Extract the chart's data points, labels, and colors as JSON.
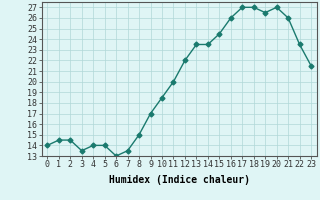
{
  "x": [
    0,
    1,
    2,
    3,
    4,
    5,
    6,
    7,
    8,
    9,
    10,
    11,
    12,
    13,
    14,
    15,
    16,
    17,
    18,
    19,
    20,
    21,
    22,
    23
  ],
  "y": [
    14.0,
    14.5,
    14.5,
    13.5,
    14.0,
    14.0,
    13.0,
    13.5,
    15.0,
    17.0,
    18.5,
    20.0,
    22.0,
    23.5,
    23.5,
    24.5,
    26.0,
    27.0,
    27.0,
    26.5,
    27.0,
    26.0,
    23.5,
    21.5
  ],
  "line_color": "#1a7a6e",
  "marker": "D",
  "markersize": 2.5,
  "linewidth": 1.0,
  "bg_color": "#dff5f5",
  "grid_color": "#b0d8d8",
  "xlabel": "Humidex (Indice chaleur)",
  "xlim": [
    -0.5,
    23.5
  ],
  "ylim": [
    13,
    27.5
  ],
  "xtick_labels": [
    "0",
    "1",
    "2",
    "3",
    "4",
    "5",
    "6",
    "7",
    "8",
    "9",
    "10",
    "11",
    "12",
    "13",
    "14",
    "15",
    "16",
    "17",
    "18",
    "19",
    "20",
    "21",
    "22",
    "23"
  ],
  "ytick_values": [
    13,
    14,
    15,
    16,
    17,
    18,
    19,
    20,
    21,
    22,
    23,
    24,
    25,
    26,
    27
  ],
  "xlabel_fontsize": 7,
  "tick_fontsize": 6
}
